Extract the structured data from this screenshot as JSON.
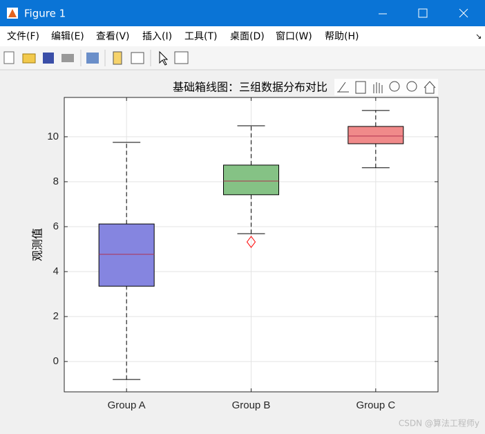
{
  "window_title": "Figure 1",
  "menu": [
    "文件(F)",
    "编辑(E)",
    "查看(V)",
    "插入(I)",
    "工具(T)",
    "桌面(D)",
    "窗口(W)",
    "帮助(H)"
  ],
  "watermark": "CSDN @算法工程师y",
  "chart_data": {
    "type": "box",
    "title": "基础箱线图：三组数据分布对比",
    "ylabel": "观测值",
    "categories": [
      "Group A",
      "Group B",
      "Group C"
    ],
    "whisker_low": [
      -0.8,
      5.69,
      8.62
    ],
    "q1": [
      3.35,
      7.42,
      9.69
    ],
    "median": [
      4.77,
      8.03,
      10.03
    ],
    "q3": [
      6.12,
      8.74,
      10.46
    ],
    "whisker_high": [
      9.75,
      10.49,
      11.17
    ],
    "outliers": [
      [],
      [
        5.32
      ],
      []
    ],
    "colors": [
      "#8585e0",
      "#85c285",
      "#f08a8a"
    ],
    "median_color": "#b03050",
    "outlier_color": "#ff0000",
    "ylim": [
      -1.35,
      11.75
    ],
    "yticks": [
      0,
      2,
      4,
      6,
      8,
      10
    ],
    "grid": true
  }
}
